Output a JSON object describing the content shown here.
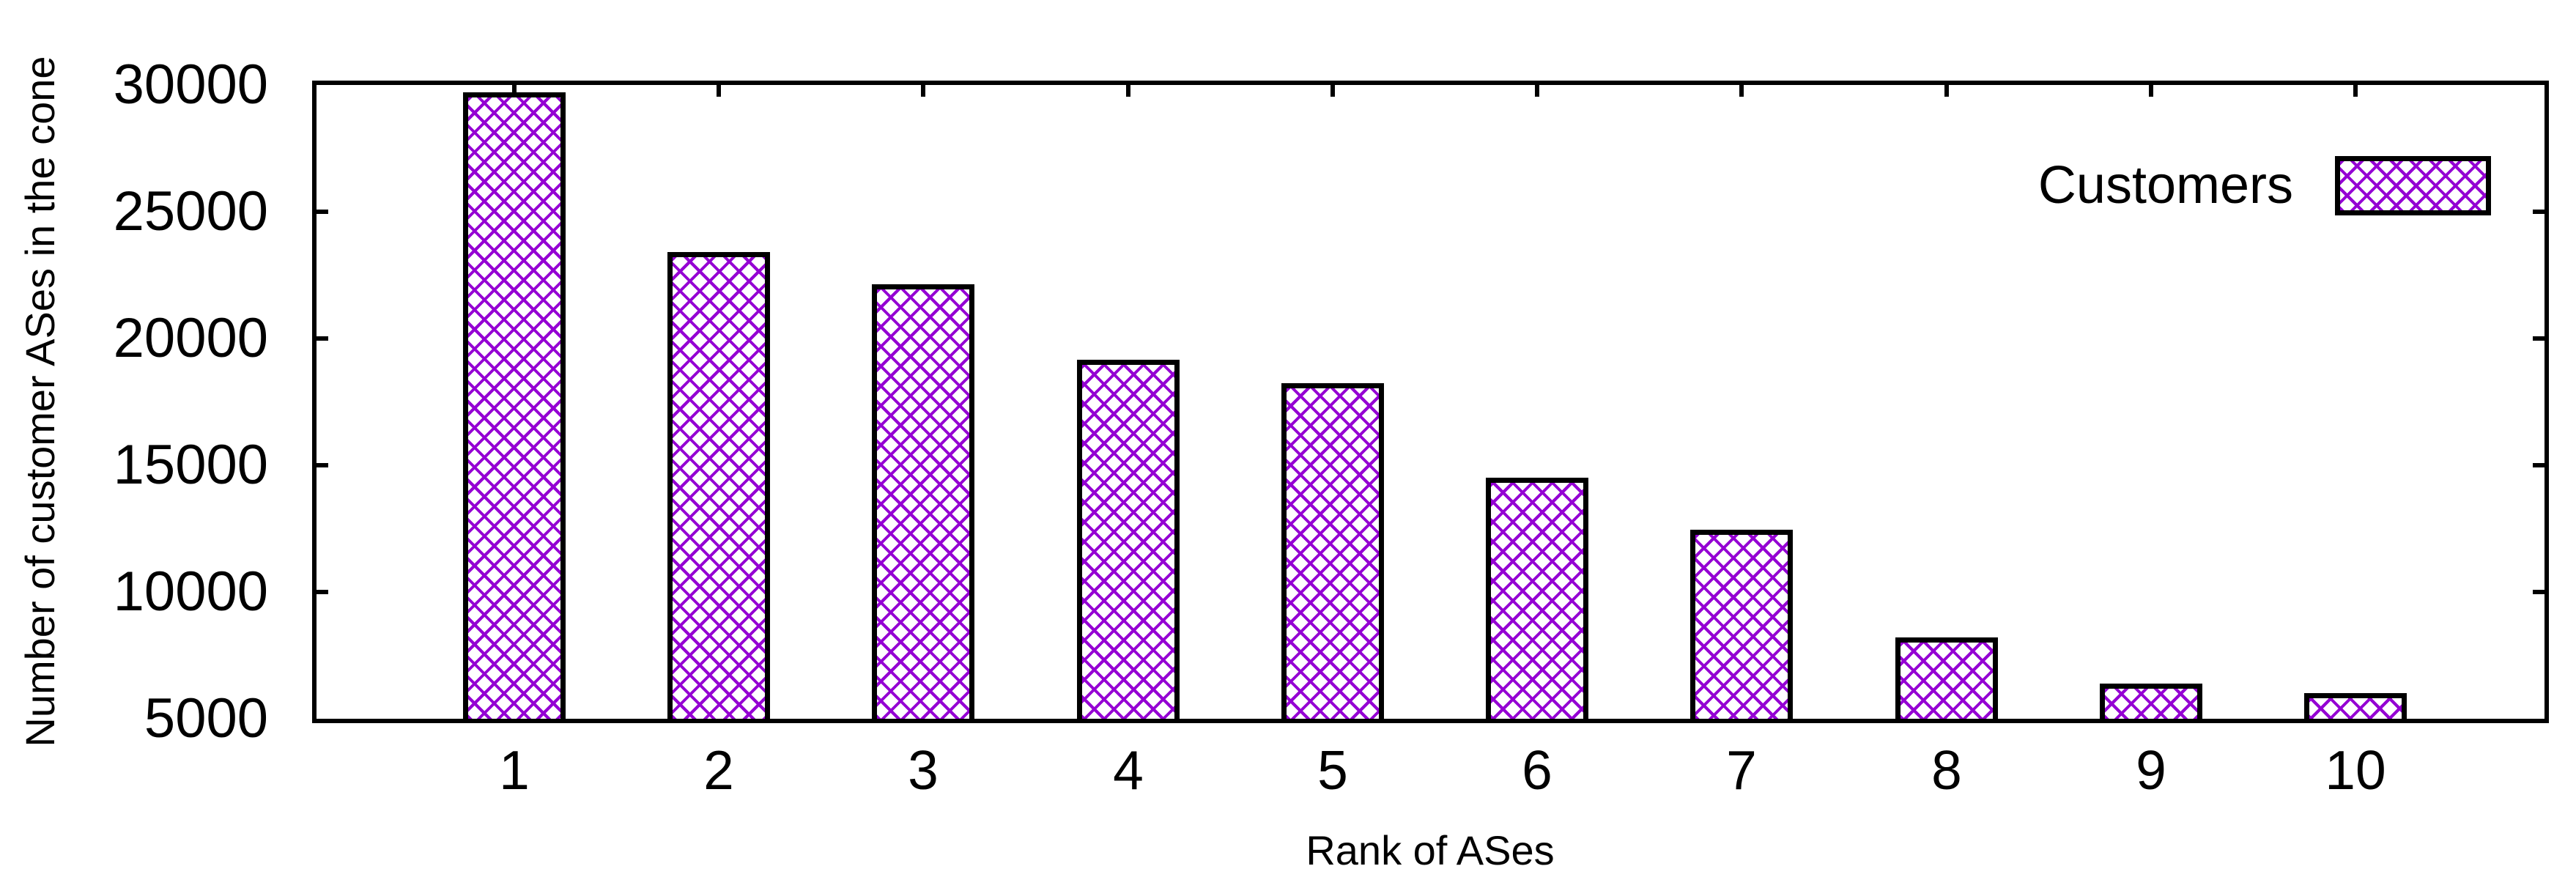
{
  "chart_data": {
    "type": "bar",
    "title": "",
    "xlabel": "Rank of ASes",
    "ylabel": "Number of customer ASes in the cone",
    "categories": [
      "1",
      "2",
      "3",
      "4",
      "5",
      "6",
      "7",
      "8",
      "9",
      "10"
    ],
    "series": [
      {
        "name": "Customers",
        "values": [
          29700,
          23400,
          22150,
          19150,
          18250,
          14500,
          12450,
          8200,
          6400,
          6000
        ]
      }
    ],
    "ylim": [
      5000,
      30000
    ],
    "yticks": [
      5000,
      10000,
      15000,
      20000,
      25000,
      30000
    ],
    "ytick_labels": [
      "5000",
      "10000",
      "15000",
      "20000",
      "25000",
      "30000"
    ],
    "grid": false,
    "legend": {
      "label": "Customers",
      "position": "top-right"
    },
    "style": {
      "pattern": "crosshatch",
      "pattern_color": "#9400d3",
      "frame_color": "#000000",
      "background_color": "#ffffff"
    }
  }
}
